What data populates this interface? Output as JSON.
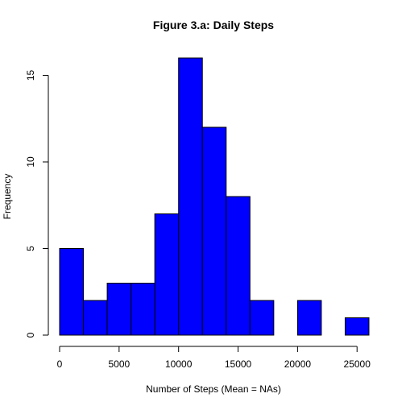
{
  "chart_data": {
    "type": "bar",
    "title": "Figure 3.a: Daily Steps",
    "xlabel": "Number of Steps (Mean = NAs)",
    "ylabel": "Frequency",
    "bar_color": "#0000ff",
    "border_color": "#000000",
    "xlim": [
      0,
      26000
    ],
    "ylim": [
      0,
      16
    ],
    "x_ticks": [
      0,
      5000,
      10000,
      15000,
      20000,
      25000
    ],
    "y_ticks": [
      0,
      5,
      10,
      15
    ],
    "bins": [
      {
        "x0": 0,
        "x1": 2000,
        "value": 5
      },
      {
        "x0": 2000,
        "x1": 4000,
        "value": 2
      },
      {
        "x0": 4000,
        "x1": 6000,
        "value": 3
      },
      {
        "x0": 6000,
        "x1": 8000,
        "value": 3
      },
      {
        "x0": 8000,
        "x1": 10000,
        "value": 7
      },
      {
        "x0": 10000,
        "x1": 12000,
        "value": 16
      },
      {
        "x0": 12000,
        "x1": 14000,
        "value": 12
      },
      {
        "x0": 14000,
        "x1": 16000,
        "value": 8
      },
      {
        "x0": 16000,
        "x1": 18000,
        "value": 2
      },
      {
        "x0": 18000,
        "x1": 20000,
        "value": 0
      },
      {
        "x0": 20000,
        "x1": 22000,
        "value": 2
      },
      {
        "x0": 22000,
        "x1": 24000,
        "value": 0
      },
      {
        "x0": 24000,
        "x1": 26000,
        "value": 1
      }
    ],
    "grid": false,
    "legend": "none"
  }
}
